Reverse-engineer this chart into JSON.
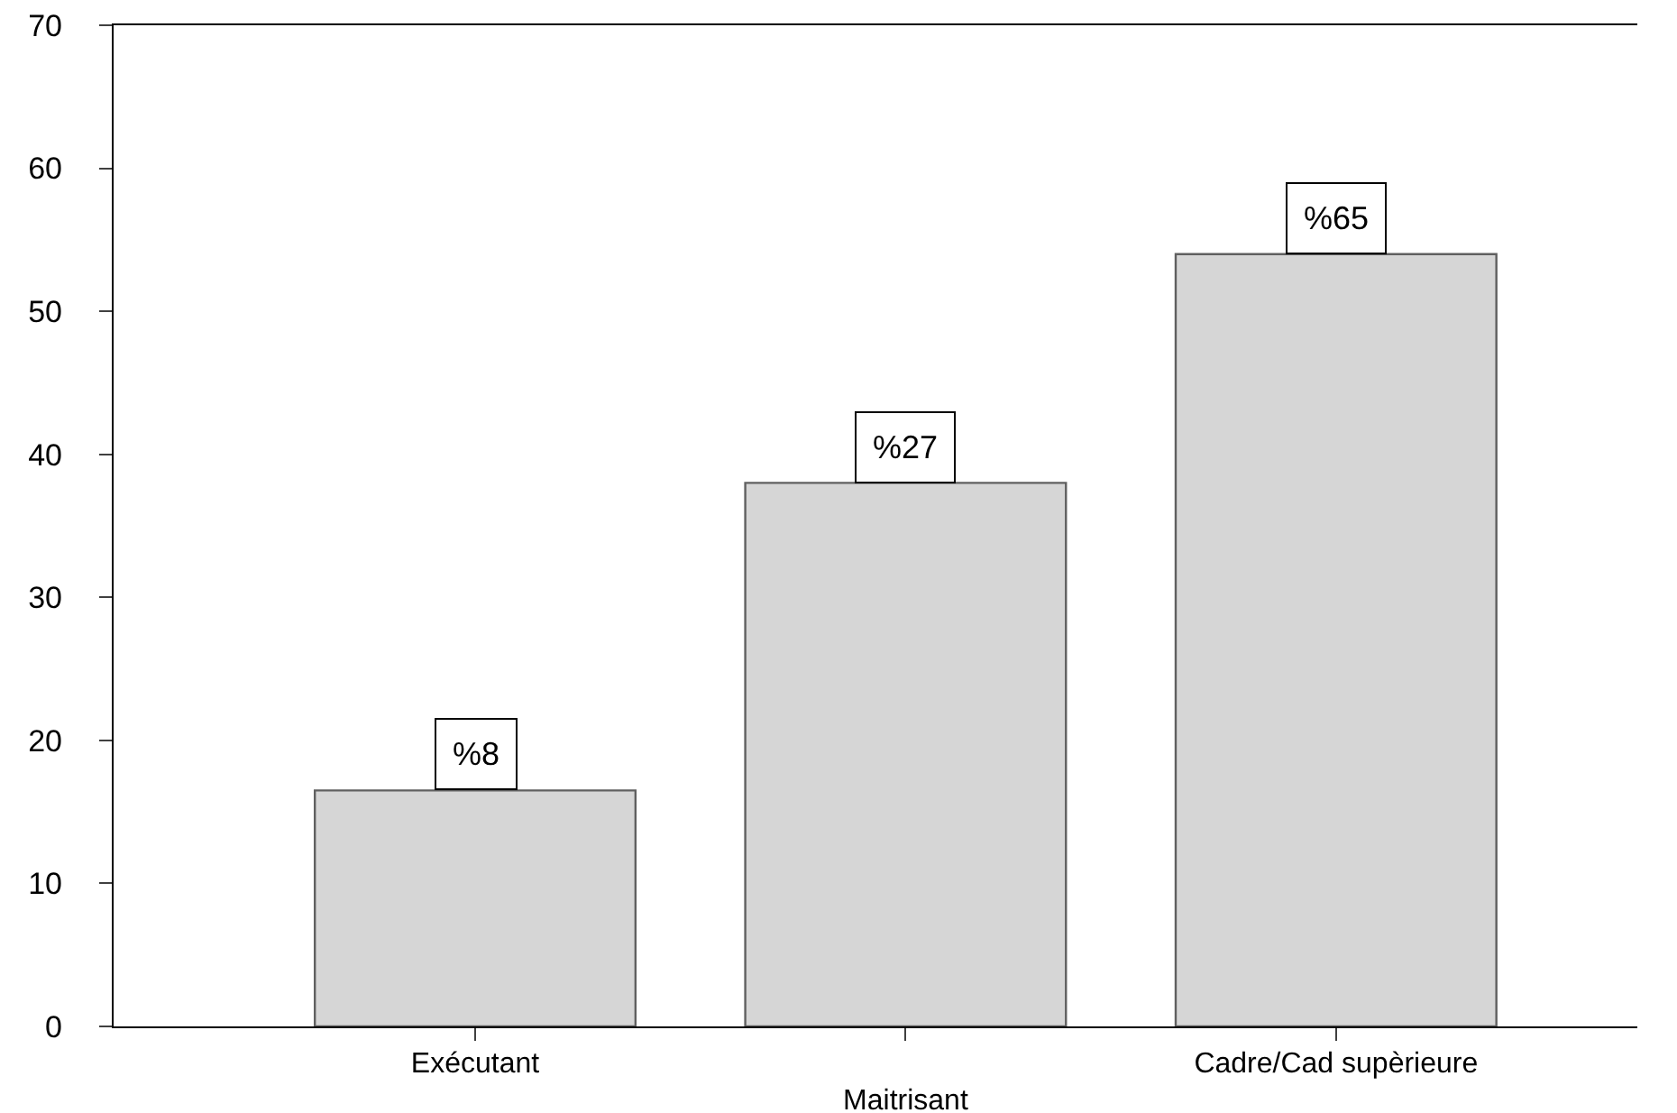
{
  "chart_data": {
    "type": "bar",
    "categories": [
      "Exécutant",
      "Maitrisant",
      "Cadre/Cad supèrieure"
    ],
    "values": [
      16.5,
      38,
      54
    ],
    "color": "#d6d6d6",
    "annotations": [
      {
        "text": "%8",
        "x": "Exécutant",
        "y": 16.5
      },
      {
        "text": "%27",
        "x": "Maitrisant",
        "y": 38
      },
      {
        "text": "%65",
        "x": "Cadre/Cad supèrieure",
        "y": 54
      }
    ],
    "ylim": [
      0,
      70
    ],
    "yticks": [
      0,
      10,
      20,
      30,
      40,
      50,
      60,
      70
    ],
    "grid": false
  }
}
